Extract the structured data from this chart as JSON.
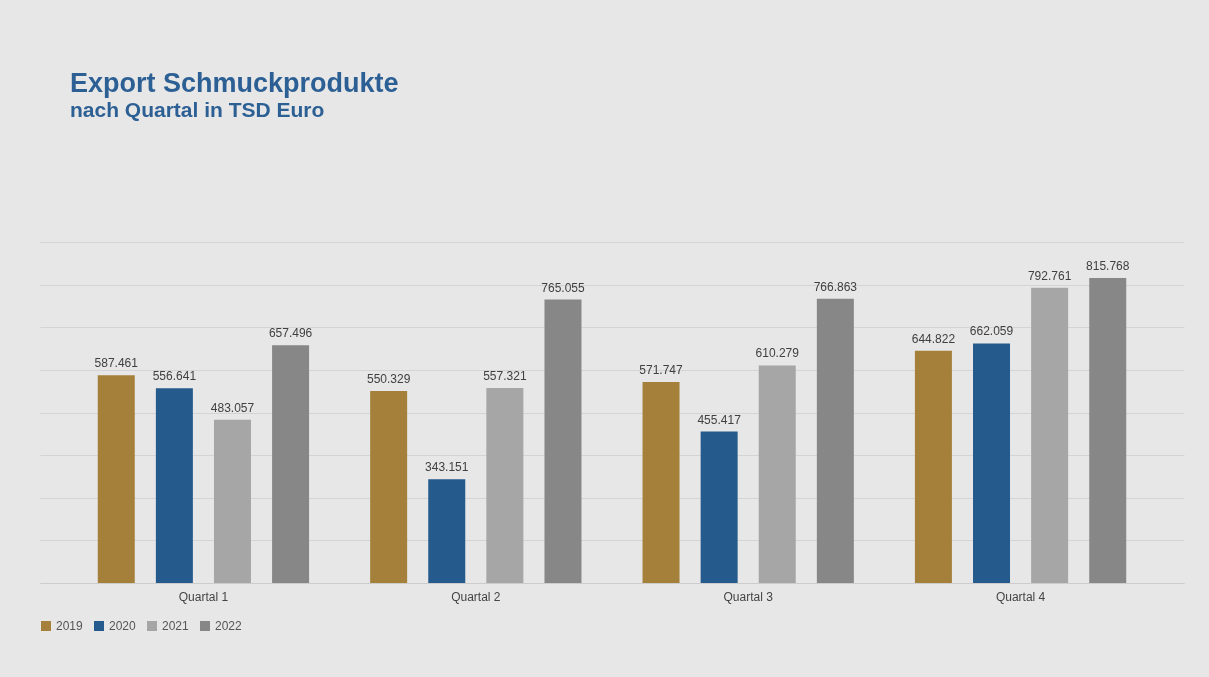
{
  "chart_data": {
    "type": "bar",
    "title": "Export Schmuckprodukte",
    "subtitle": "nach Quartal in TSD Euro",
    "categories": [
      "Quartal 1",
      "Quartal 2",
      "Quartal 3",
      "Quartal 4"
    ],
    "series": [
      {
        "name": "2019",
        "color": "#a4803a",
        "values": [
          587461,
          550329,
          571747,
          644822
        ],
        "value_labels": [
          "587.461",
          "550.329",
          "571.747",
          "644.822"
        ]
      },
      {
        "name": "2020",
        "color": "#245a8c",
        "values": [
          556641,
          343151,
          455417,
          662059
        ],
        "value_labels": [
          "556.641",
          "343.151",
          "455.417",
          "662.059"
        ]
      },
      {
        "name": "2021",
        "color": "#a6a6a6",
        "values": [
          483057,
          557321,
          610279,
          792761
        ],
        "value_labels": [
          "483.057",
          "557.321",
          "610.279",
          "792.761"
        ]
      },
      {
        "name": "2022",
        "color": "#878787",
        "values": [
          657496,
          765055,
          766863,
          815768
        ],
        "value_labels": [
          "657.496",
          "765.055",
          "766.863",
          "815.768"
        ]
      }
    ],
    "ylim": [
      100000,
      900000
    ],
    "yticks": [
      {
        "value": 100000,
        "label": null
      },
      {
        "value": 200000,
        "label": null
      },
      {
        "value": 300000,
        "label": null
      },
      {
        "value": 400000,
        "label": null
      },
      {
        "value": 500000,
        "label": null
      },
      {
        "value": 600000,
        "label": null
      },
      {
        "value": 700000,
        "label": null
      },
      {
        "value": 800000,
        "label": null
      },
      {
        "value": 900000,
        "label": null
      }
    ],
    "tick_labels": "x",
    "grid": "y",
    "legend": "bottom"
  }
}
